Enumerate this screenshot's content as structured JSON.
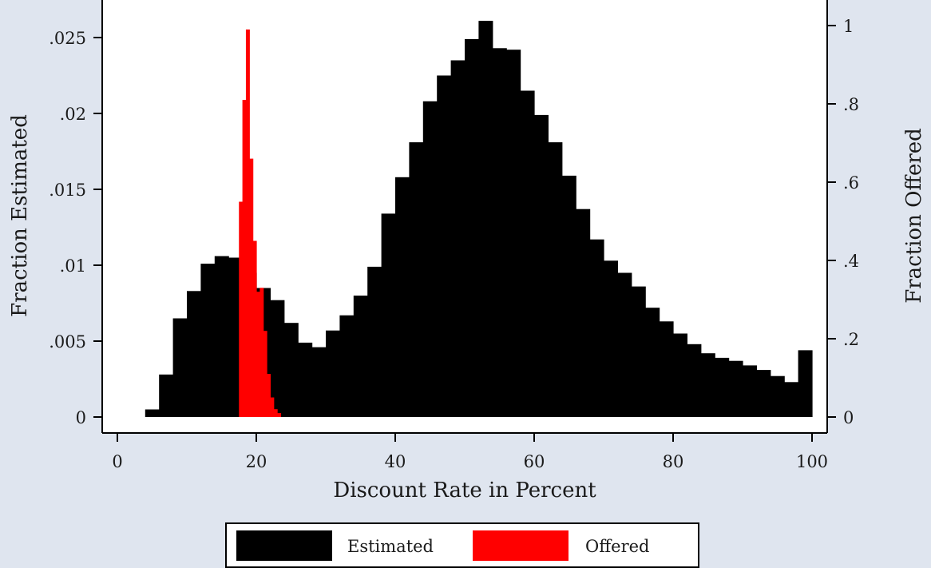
{
  "chart_data": {
    "type": "bar",
    "title": "",
    "xlabel": "Discount Rate in Percent",
    "ylabel_left": "Fraction Estimated",
    "ylabel_right": "Fraction Offered",
    "xlim": [
      0,
      100
    ],
    "ylim_left": [
      0,
      0.026
    ],
    "ylim_right": [
      0,
      1
    ],
    "x_ticks": [
      0,
      20,
      40,
      60,
      80,
      100
    ],
    "x_tick_labels": [
      "0",
      "20",
      "40",
      "60",
      "80",
      "100"
    ],
    "y_left_ticks": [
      0,
      0.005,
      0.01,
      0.015,
      0.02,
      0.025
    ],
    "y_left_tick_labels": [
      "0",
      ".005",
      ".01",
      ".015",
      ".02",
      ".025"
    ],
    "y_right_ticks": [
      0,
      0.2,
      0.4,
      0.6,
      0.8,
      1
    ],
    "y_right_tick_labels": [
      "0",
      ".2",
      ".4",
      ".6",
      ".8",
      "1"
    ],
    "grid": false,
    "legend_placement": "bottom",
    "series": [
      {
        "name": "Estimated",
        "axis": "left",
        "color": "#000000",
        "bin_width": 2,
        "bin_start": [
          4,
          6,
          8,
          10,
          12,
          14,
          16,
          18,
          20,
          22,
          24,
          26,
          28,
          30,
          32,
          34,
          36,
          38,
          40,
          42,
          44,
          46,
          48,
          50,
          52,
          54,
          56,
          58,
          60,
          62,
          64,
          66,
          68,
          70,
          72,
          74,
          76,
          78,
          80,
          82,
          84,
          86,
          88,
          90,
          92,
          94,
          96,
          98
        ],
        "values": [
          0.0005,
          0.0028,
          0.0065,
          0.0083,
          0.0101,
          0.0106,
          0.0105,
          0.0095,
          0.0085,
          0.0077,
          0.0062,
          0.0049,
          0.0046,
          0.0057,
          0.0067,
          0.008,
          0.0099,
          0.0134,
          0.0158,
          0.0181,
          0.0208,
          0.0225,
          0.0235,
          0.0249,
          0.0261,
          0.0243,
          0.0242,
          0.0215,
          0.0199,
          0.0181,
          0.0159,
          0.0137,
          0.0117,
          0.0103,
          0.0095,
          0.0086,
          0.0072,
          0.0063,
          0.0055,
          0.0048,
          0.0042,
          0.0039,
          0.0037,
          0.0034,
          0.0031,
          0.0027,
          0.0023,
          0.0044
        ]
      },
      {
        "name": "Offered",
        "axis": "right",
        "color": "#ff0000",
        "bin_width": 0.5,
        "bin_start": [
          17.5,
          18.0,
          18.5,
          19.0,
          19.5,
          20.0,
          20.5,
          21.0,
          21.5,
          22.0,
          22.5,
          23.0
        ],
        "values": [
          0.55,
          0.81,
          0.99,
          0.66,
          0.45,
          0.32,
          0.33,
          0.22,
          0.11,
          0.05,
          0.02,
          0.01
        ]
      }
    ]
  }
}
